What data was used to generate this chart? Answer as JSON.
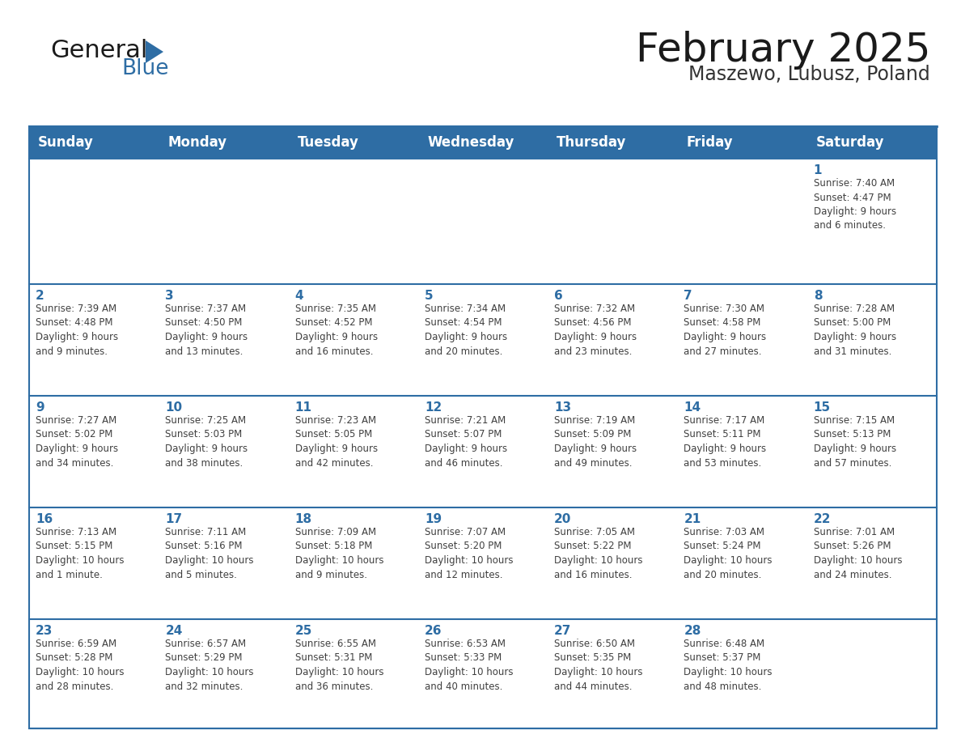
{
  "title": "February 2025",
  "subtitle": "Maszewo, Lubusz, Poland",
  "header_bg": "#2E6DA4",
  "header_text_color": "#FFFFFF",
  "cell_bg": "#FFFFFF",
  "first_row_bg": "#F0F0F0",
  "grid_line_color": "#2E6DA4",
  "day_number_color": "#2E6DA4",
  "cell_text_color": "#404040",
  "days_of_week": [
    "Sunday",
    "Monday",
    "Tuesday",
    "Wednesday",
    "Thursday",
    "Friday",
    "Saturday"
  ],
  "weeks": [
    [
      {
        "day": "",
        "info": ""
      },
      {
        "day": "",
        "info": ""
      },
      {
        "day": "",
        "info": ""
      },
      {
        "day": "",
        "info": ""
      },
      {
        "day": "",
        "info": ""
      },
      {
        "day": "",
        "info": ""
      },
      {
        "day": "1",
        "info": "Sunrise: 7:40 AM\nSunset: 4:47 PM\nDaylight: 9 hours\nand 6 minutes."
      }
    ],
    [
      {
        "day": "2",
        "info": "Sunrise: 7:39 AM\nSunset: 4:48 PM\nDaylight: 9 hours\nand 9 minutes."
      },
      {
        "day": "3",
        "info": "Sunrise: 7:37 AM\nSunset: 4:50 PM\nDaylight: 9 hours\nand 13 minutes."
      },
      {
        "day": "4",
        "info": "Sunrise: 7:35 AM\nSunset: 4:52 PM\nDaylight: 9 hours\nand 16 minutes."
      },
      {
        "day": "5",
        "info": "Sunrise: 7:34 AM\nSunset: 4:54 PM\nDaylight: 9 hours\nand 20 minutes."
      },
      {
        "day": "6",
        "info": "Sunrise: 7:32 AM\nSunset: 4:56 PM\nDaylight: 9 hours\nand 23 minutes."
      },
      {
        "day": "7",
        "info": "Sunrise: 7:30 AM\nSunset: 4:58 PM\nDaylight: 9 hours\nand 27 minutes."
      },
      {
        "day": "8",
        "info": "Sunrise: 7:28 AM\nSunset: 5:00 PM\nDaylight: 9 hours\nand 31 minutes."
      }
    ],
    [
      {
        "day": "9",
        "info": "Sunrise: 7:27 AM\nSunset: 5:02 PM\nDaylight: 9 hours\nand 34 minutes."
      },
      {
        "day": "10",
        "info": "Sunrise: 7:25 AM\nSunset: 5:03 PM\nDaylight: 9 hours\nand 38 minutes."
      },
      {
        "day": "11",
        "info": "Sunrise: 7:23 AM\nSunset: 5:05 PM\nDaylight: 9 hours\nand 42 minutes."
      },
      {
        "day": "12",
        "info": "Sunrise: 7:21 AM\nSunset: 5:07 PM\nDaylight: 9 hours\nand 46 minutes."
      },
      {
        "day": "13",
        "info": "Sunrise: 7:19 AM\nSunset: 5:09 PM\nDaylight: 9 hours\nand 49 minutes."
      },
      {
        "day": "14",
        "info": "Sunrise: 7:17 AM\nSunset: 5:11 PM\nDaylight: 9 hours\nand 53 minutes."
      },
      {
        "day": "15",
        "info": "Sunrise: 7:15 AM\nSunset: 5:13 PM\nDaylight: 9 hours\nand 57 minutes."
      }
    ],
    [
      {
        "day": "16",
        "info": "Sunrise: 7:13 AM\nSunset: 5:15 PM\nDaylight: 10 hours\nand 1 minute."
      },
      {
        "day": "17",
        "info": "Sunrise: 7:11 AM\nSunset: 5:16 PM\nDaylight: 10 hours\nand 5 minutes."
      },
      {
        "day": "18",
        "info": "Sunrise: 7:09 AM\nSunset: 5:18 PM\nDaylight: 10 hours\nand 9 minutes."
      },
      {
        "day": "19",
        "info": "Sunrise: 7:07 AM\nSunset: 5:20 PM\nDaylight: 10 hours\nand 12 minutes."
      },
      {
        "day": "20",
        "info": "Sunrise: 7:05 AM\nSunset: 5:22 PM\nDaylight: 10 hours\nand 16 minutes."
      },
      {
        "day": "21",
        "info": "Sunrise: 7:03 AM\nSunset: 5:24 PM\nDaylight: 10 hours\nand 20 minutes."
      },
      {
        "day": "22",
        "info": "Sunrise: 7:01 AM\nSunset: 5:26 PM\nDaylight: 10 hours\nand 24 minutes."
      }
    ],
    [
      {
        "day": "23",
        "info": "Sunrise: 6:59 AM\nSunset: 5:28 PM\nDaylight: 10 hours\nand 28 minutes."
      },
      {
        "day": "24",
        "info": "Sunrise: 6:57 AM\nSunset: 5:29 PM\nDaylight: 10 hours\nand 32 minutes."
      },
      {
        "day": "25",
        "info": "Sunrise: 6:55 AM\nSunset: 5:31 PM\nDaylight: 10 hours\nand 36 minutes."
      },
      {
        "day": "26",
        "info": "Sunrise: 6:53 AM\nSunset: 5:33 PM\nDaylight: 10 hours\nand 40 minutes."
      },
      {
        "day": "27",
        "info": "Sunrise: 6:50 AM\nSunset: 5:35 PM\nDaylight: 10 hours\nand 44 minutes."
      },
      {
        "day": "28",
        "info": "Sunrise: 6:48 AM\nSunset: 5:37 PM\nDaylight: 10 hours\nand 48 minutes."
      },
      {
        "day": "",
        "info": ""
      }
    ]
  ],
  "logo_text_general": "General",
  "logo_text_blue": "Blue",
  "logo_general_color": "#1a1a1a",
  "logo_blue_color": "#2E6DA4",
  "title_fontsize": 36,
  "subtitle_fontsize": 17,
  "header_fontsize": 12,
  "day_num_fontsize": 11,
  "cell_text_fontsize": 8.5
}
